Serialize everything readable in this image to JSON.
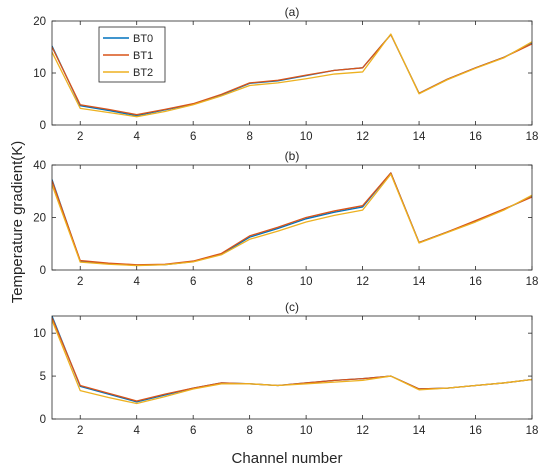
{
  "figure": {
    "xlabel": "Channel number",
    "ylabel": "Temperature gradient(K)"
  },
  "colors": {
    "BT0": "#0072bd",
    "BT1": "#d95319",
    "BT2": "#edb120",
    "axes": "#262626",
    "grid_tick": "#262626"
  },
  "legend": {
    "placement": "top-left",
    "entries": [
      "BT0",
      "BT1",
      "BT2"
    ]
  },
  "chart_data": [
    {
      "type": "line",
      "title": "(a)",
      "x": [
        1,
        2,
        3,
        4,
        5,
        6,
        7,
        8,
        9,
        10,
        11,
        12,
        13,
        14,
        15,
        16,
        17,
        18
      ],
      "xlim": [
        1,
        18
      ],
      "ylim": [
        0,
        20
      ],
      "xticks": [
        2,
        4,
        6,
        8,
        10,
        12,
        14,
        16,
        18
      ],
      "yticks": [
        0,
        10,
        20
      ],
      "series": [
        {
          "name": "BT0",
          "values": [
            15.2,
            3.7,
            2.8,
            1.8,
            2.9,
            4.0,
            5.8,
            8.0,
            8.5,
            9.5,
            10.5,
            11.0,
            17.4,
            6.1,
            8.8,
            11.0,
            13.0,
            15.8
          ]
        },
        {
          "name": "BT1",
          "values": [
            15.0,
            3.9,
            3.0,
            2.0,
            3.0,
            4.1,
            5.9,
            8.1,
            8.6,
            9.6,
            10.5,
            11.0,
            17.4,
            6.1,
            8.8,
            11.0,
            13.0,
            15.6
          ]
        },
        {
          "name": "BT2",
          "values": [
            14.0,
            3.2,
            2.4,
            1.6,
            2.6,
            3.9,
            5.6,
            7.6,
            8.1,
            8.9,
            9.8,
            10.2,
            17.5,
            6.0,
            8.7,
            10.9,
            12.9,
            16.0
          ]
        }
      ]
    },
    {
      "type": "line",
      "title": "(b)",
      "x": [
        1,
        2,
        3,
        4,
        5,
        6,
        7,
        8,
        9,
        10,
        11,
        12,
        13,
        14,
        15,
        16,
        17,
        18
      ],
      "xlim": [
        1,
        18
      ],
      "ylim": [
        0,
        40
      ],
      "xticks": [
        2,
        4,
        6,
        8,
        10,
        12,
        14,
        16,
        18
      ],
      "yticks": [
        0,
        20,
        40
      ],
      "series": [
        {
          "name": "BT0",
          "values": [
            34.5,
            3.3,
            2.4,
            1.8,
            2.0,
            3.2,
            6.0,
            12.5,
            15.8,
            19.5,
            22.0,
            24.0,
            37.0,
            10.5,
            14.5,
            18.5,
            23.0,
            28.0
          ]
        },
        {
          "name": "BT1",
          "values": [
            34.0,
            3.6,
            2.6,
            2.0,
            2.2,
            3.4,
            6.3,
            13.0,
            16.3,
            20.0,
            22.5,
            24.5,
            37.0,
            10.5,
            14.5,
            18.8,
            23.2,
            27.8
          ]
        },
        {
          "name": "BT2",
          "values": [
            32.5,
            3.0,
            2.2,
            1.7,
            2.0,
            3.1,
            5.8,
            11.7,
            14.8,
            18.3,
            20.8,
            22.8,
            36.5,
            10.3,
            14.3,
            18.3,
            22.8,
            28.5
          ]
        }
      ]
    },
    {
      "type": "line",
      "title": "(c)",
      "x": [
        1,
        2,
        3,
        4,
        5,
        6,
        7,
        8,
        9,
        10,
        11,
        12,
        13,
        14,
        15,
        16,
        17,
        18
      ],
      "xlim": [
        1,
        18
      ],
      "ylim": [
        0,
        12
      ],
      "xticks": [
        2,
        4,
        6,
        8,
        10,
        12,
        14,
        16,
        18
      ],
      "yticks": [
        0,
        5,
        10
      ],
      "series": [
        {
          "name": "BT0",
          "values": [
            12.0,
            3.8,
            2.9,
            2.0,
            2.8,
            3.6,
            4.2,
            4.1,
            3.9,
            4.2,
            4.5,
            4.7,
            5.0,
            3.5,
            3.6,
            3.9,
            4.2,
            4.6
          ]
        },
        {
          "name": "BT1",
          "values": [
            11.8,
            3.9,
            3.0,
            2.1,
            2.9,
            3.6,
            4.2,
            4.1,
            3.9,
            4.2,
            4.5,
            4.7,
            5.0,
            3.5,
            3.6,
            3.9,
            4.2,
            4.6
          ]
        },
        {
          "name": "BT2",
          "values": [
            11.5,
            3.3,
            2.5,
            1.8,
            2.6,
            3.5,
            4.1,
            4.1,
            3.9,
            4.1,
            4.3,
            4.5,
            5.0,
            3.4,
            3.6,
            3.9,
            4.2,
            4.6
          ]
        }
      ]
    }
  ]
}
